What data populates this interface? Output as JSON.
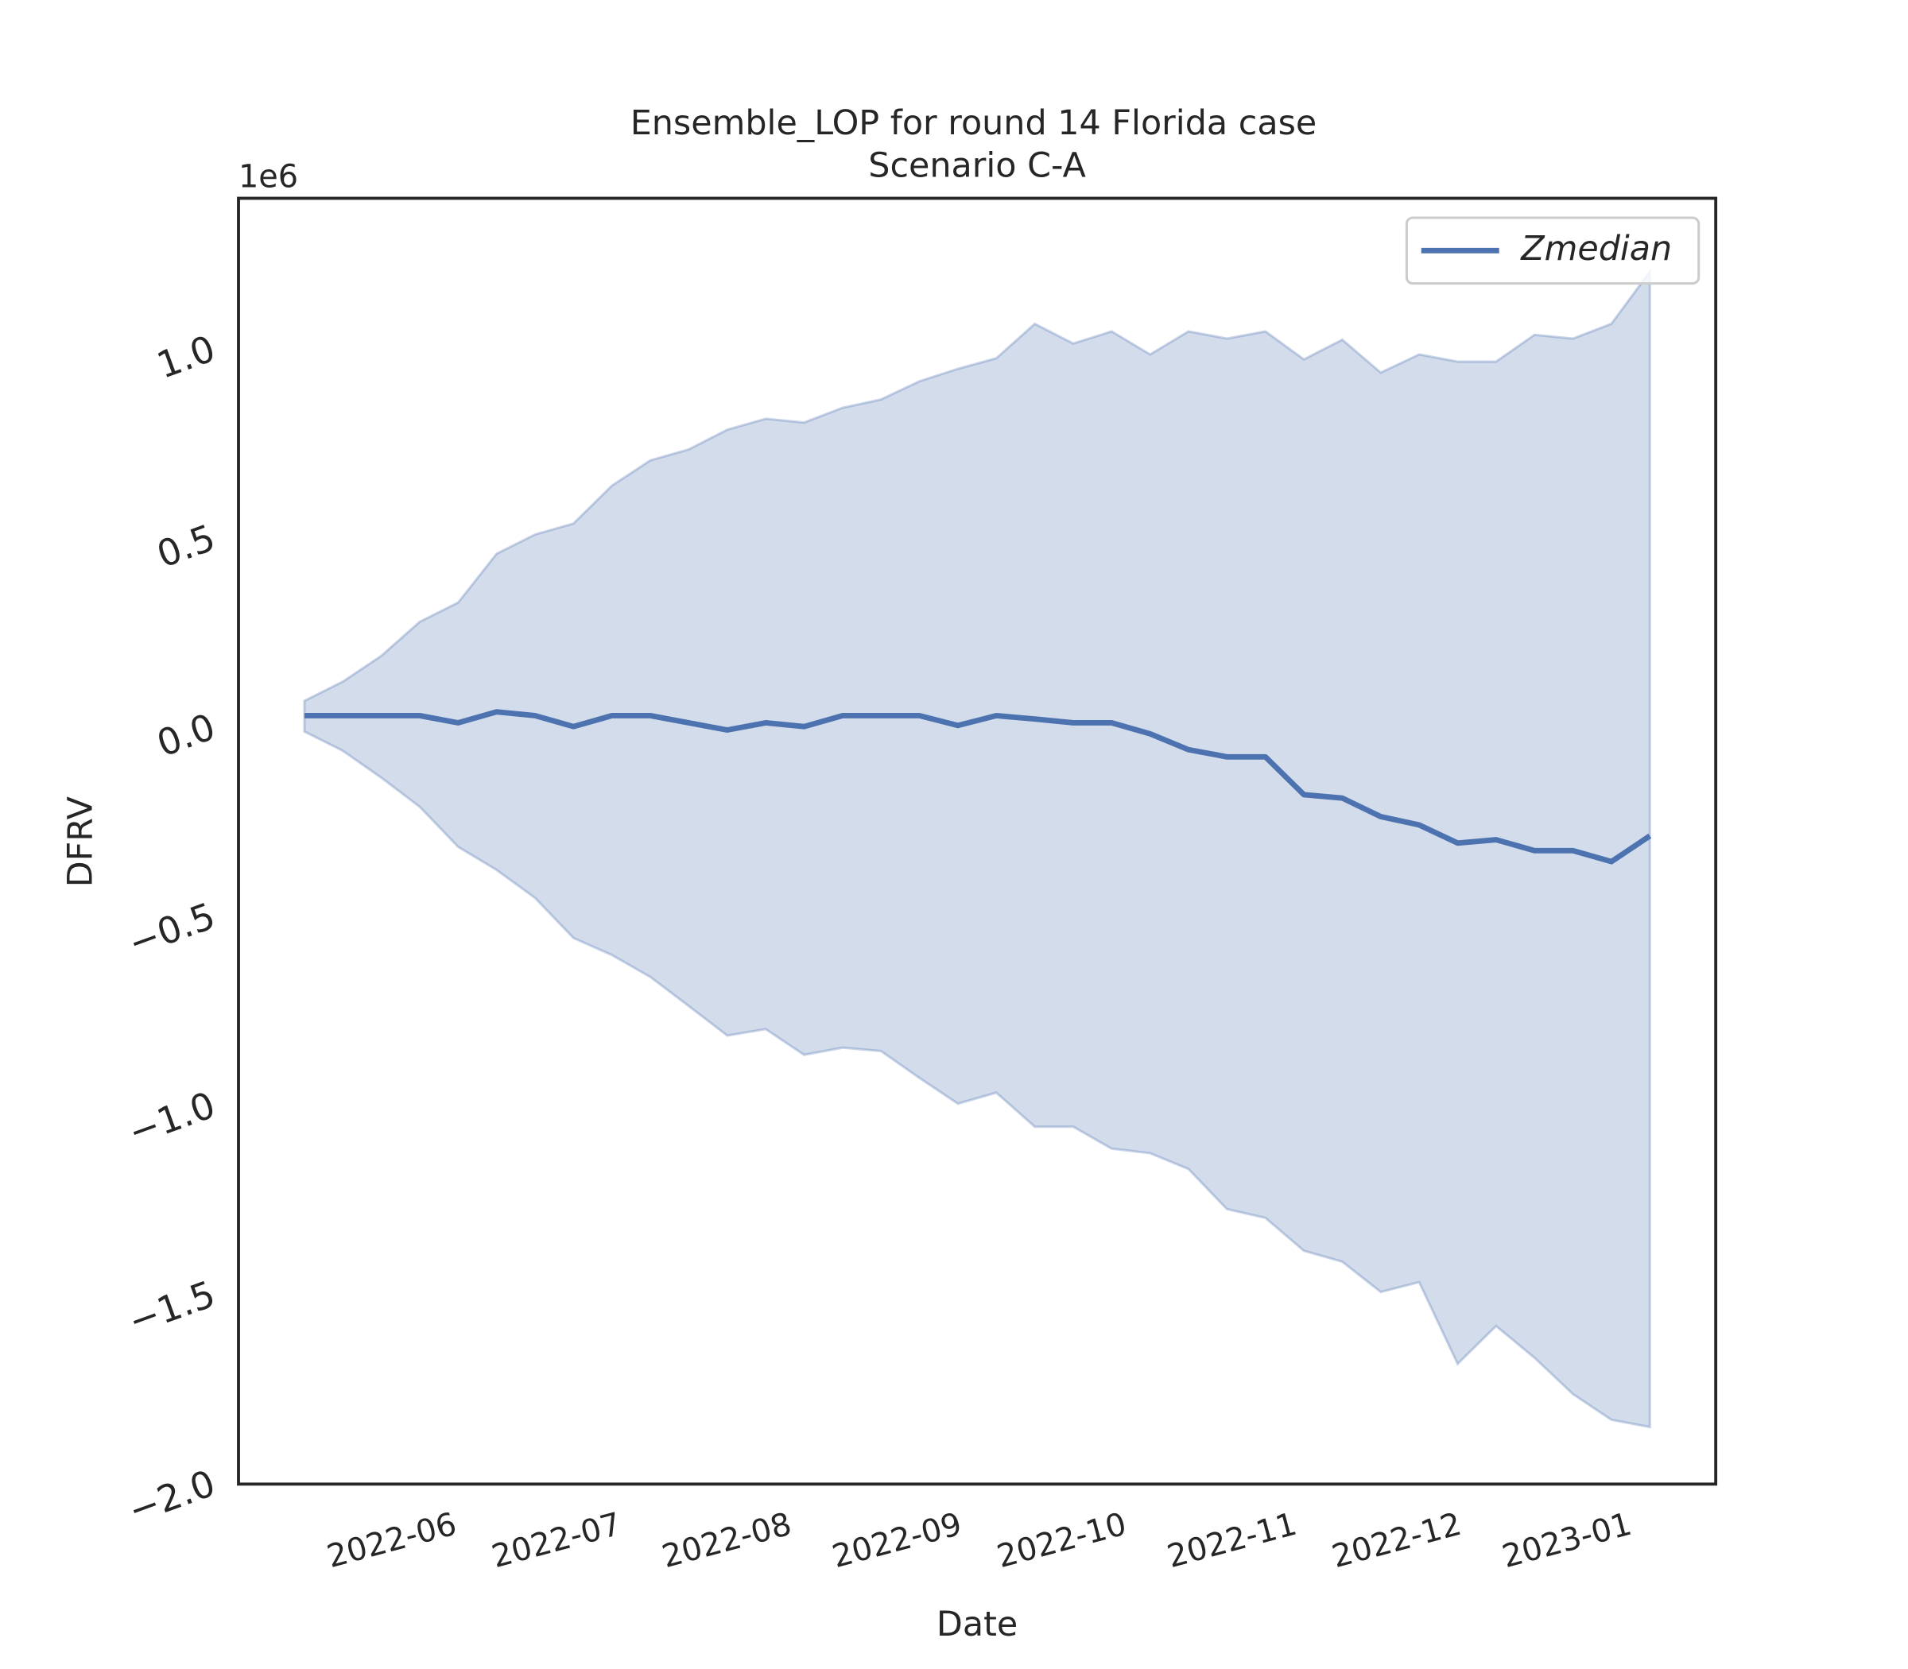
{
  "chart_data": {
    "type": "line",
    "title": "Ensemble_LOP for round 14 Florida case",
    "subtitle": "Scenario C-A",
    "x_label": "Date",
    "y_label": "DFRV",
    "y_offset_label": "1e6",
    "legend": "upper right",
    "x": [
      "2022-05-16",
      "2022-05-23",
      "2022-05-30",
      "2022-06-06",
      "2022-06-13",
      "2022-06-20",
      "2022-06-27",
      "2022-07-04",
      "2022-07-11",
      "2022-07-18",
      "2022-07-25",
      "2022-08-01",
      "2022-08-08",
      "2022-08-15",
      "2022-08-22",
      "2022-08-29",
      "2022-09-05",
      "2022-09-12",
      "2022-09-19",
      "2022-09-26",
      "2022-10-03",
      "2022-10-10",
      "2022-10-17",
      "2022-10-24",
      "2022-10-31",
      "2022-11-07",
      "2022-11-14",
      "2022-11-21",
      "2022-11-28",
      "2022-12-05",
      "2022-12-12",
      "2022-12-19",
      "2022-12-26",
      "2023-01-02",
      "2023-01-09",
      "2023-01-16"
    ],
    "series": [
      {
        "name": "Zmedian",
        "color": "#4c72b0",
        "values": [
          32000,
          32000,
          32000,
          32000,
          13000,
          42000,
          32000,
          3000,
          32000,
          32000,
          13000,
          -6000,
          13000,
          3000,
          32000,
          32000,
          32000,
          6000,
          32000,
          23000,
          13000,
          13000,
          -16000,
          -58000,
          -77000,
          -77000,
          -177000,
          -186000,
          -235000,
          -257000,
          -305000,
          -296000,
          -325000,
          -325000,
          -354000,
          -286000
        ]
      }
    ],
    "band": {
      "color": "#4c72b0",
      "upper": [
        71000,
        122000,
        190000,
        280000,
        331000,
        460000,
        511000,
        540000,
        640000,
        707000,
        736000,
        788000,
        817000,
        807000,
        846000,
        868000,
        916000,
        949000,
        977000,
        1068000,
        1016000,
        1048000,
        987000,
        1048000,
        1029000,
        1048000,
        974000,
        1026000,
        939000,
        987000,
        968000,
        968000,
        1039000,
        1029000,
        1068000,
        1206000
      ],
      "lower": [
        -10000,
        -61000,
        -132000,
        -209000,
        -315000,
        -376000,
        -450000,
        -556000,
        -601000,
        -659000,
        -736000,
        -814000,
        -797000,
        -865000,
        -846000,
        -855000,
        -926000,
        -994000,
        -965000,
        -1055000,
        -1055000,
        -1113000,
        -1125000,
        -1167000,
        -1273000,
        -1296000,
        -1383000,
        -1412000,
        -1492000,
        -1466000,
        -1682000,
        -1582000,
        -1666000,
        -1762000,
        -1830000,
        -1849000
      ]
    },
    "xlim": [
      "2022-05-04",
      "2023-01-28"
    ],
    "xticks": [
      {
        "value": "2022-06-01",
        "label": "2022-06"
      },
      {
        "value": "2022-07-01",
        "label": "2022-07"
      },
      {
        "value": "2022-08-01",
        "label": "2022-08"
      },
      {
        "value": "2022-09-01",
        "label": "2022-09"
      },
      {
        "value": "2022-10-01",
        "label": "2022-10"
      },
      {
        "value": "2022-11-01",
        "label": "2022-11"
      },
      {
        "value": "2022-12-01",
        "label": "2022-12"
      },
      {
        "value": "2023-01-01",
        "label": "2023-01"
      }
    ],
    "ylim": [
      -2000000,
      1400000
    ],
    "yticks": [
      {
        "value": -2000000,
        "label": "−2.0"
      },
      {
        "value": -1500000,
        "label": "−1.5"
      },
      {
        "value": -1000000,
        "label": "−1.0"
      },
      {
        "value": -500000,
        "label": "−0.5"
      },
      {
        "value": 0,
        "label": "0.0"
      },
      {
        "value": 500000,
        "label": "0.5"
      },
      {
        "value": 1000000,
        "label": "1.0"
      }
    ]
  }
}
